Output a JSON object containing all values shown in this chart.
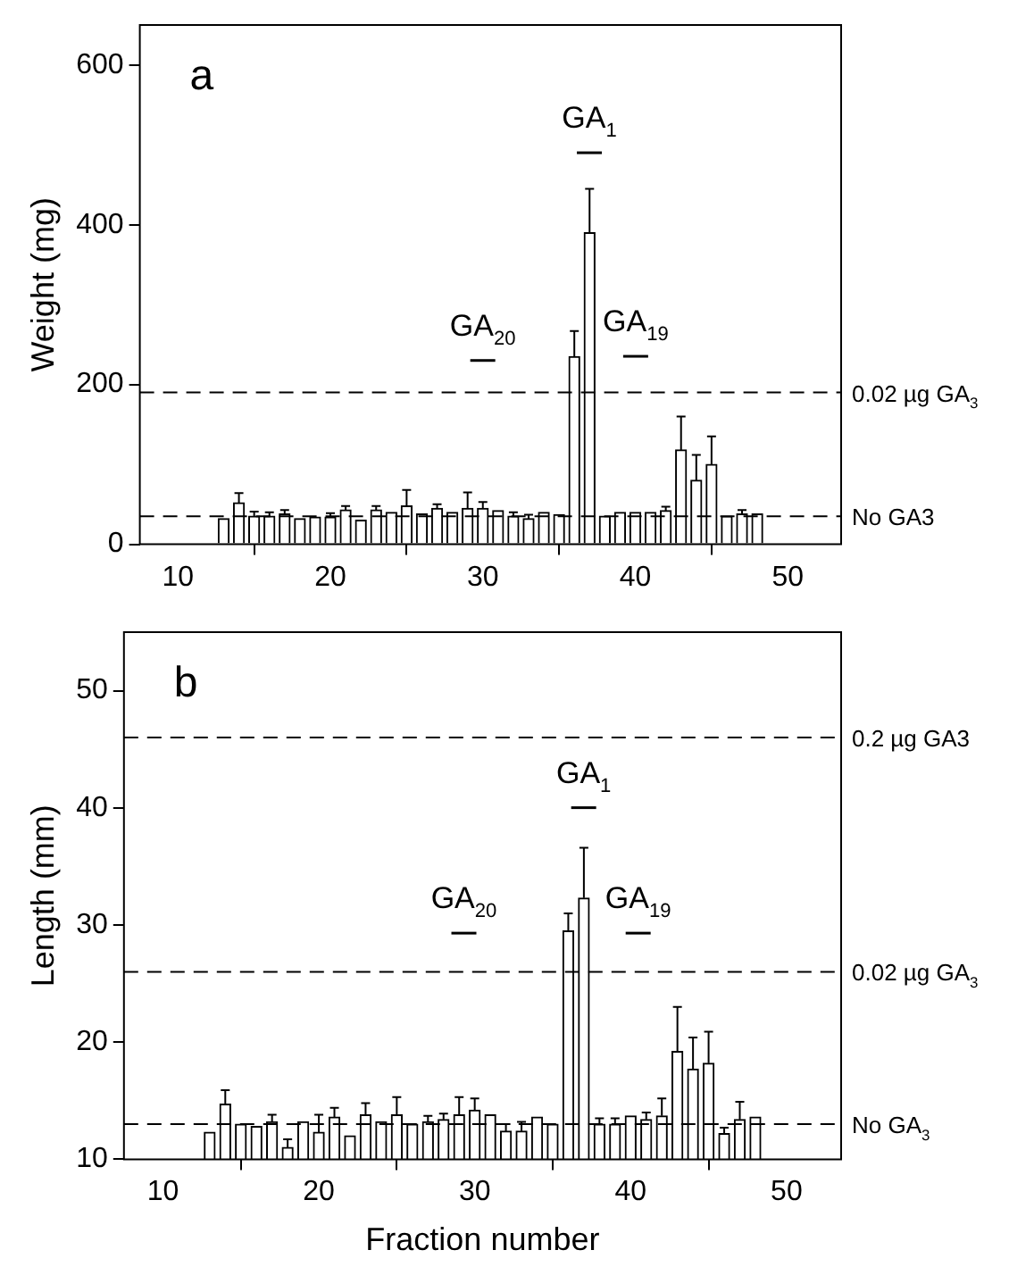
{
  "chart_data": [
    {
      "type": "bar",
      "ylabel": "Weight (mg)",
      "x": [
        13,
        14,
        15,
        16,
        17,
        18,
        19,
        20,
        21,
        22,
        23,
        24,
        25,
        26,
        27,
        28,
        29,
        30,
        31,
        32,
        33,
        34,
        35,
        36,
        37,
        38,
        39,
        40,
        41,
        42,
        43,
        44,
        45,
        46,
        47,
        48
      ],
      "values": [
        32,
        52,
        35,
        35,
        38,
        32,
        34,
        34,
        43,
        30,
        43,
        40,
        48,
        38,
        45,
        40,
        45,
        45,
        42,
        35,
        32,
        40,
        37,
        235,
        390,
        35,
        40,
        40,
        40,
        42,
        118,
        80,
        100,
        35,
        38,
        38
      ],
      "errors": [
        null,
        12,
        6,
        5,
        5,
        null,
        null,
        5,
        5,
        null,
        5,
        null,
        20,
        null,
        5,
        null,
        20,
        8,
        null,
        5,
        5,
        null,
        null,
        32,
        55,
        null,
        null,
        null,
        null,
        5,
        42,
        32,
        35,
        null,
        5,
        null
      ],
      "color": "#ffffff",
      "xlim": [
        7.5,
        53.5
      ],
      "xticks": [
        10,
        20,
        30,
        40,
        50
      ],
      "ylim": [
        0,
        650
      ],
      "yticks": [
        0,
        200,
        400,
        600
      ],
      "grid": false,
      "ref_lines": [
        {
          "axis": "y",
          "value": 190,
          "label": "0.02 µg GA$_{3}$",
          "line_style": "dashed"
        },
        {
          "axis": "y",
          "value": 35,
          "label": "No GA3",
          "line_style": "dashed"
        }
      ],
      "annotations": [
        "a",
        "GA$_{1}$",
        "GA$_{20}$",
        "GA$_{19}$"
      ]
    },
    {
      "type": "bar",
      "xlabel": "Fraction number",
      "ylabel": "Length (mm)",
      "x": [
        13,
        14,
        15,
        16,
        17,
        18,
        19,
        20,
        21,
        22,
        23,
        24,
        25,
        26,
        27,
        28,
        29,
        30,
        31,
        32,
        33,
        34,
        35,
        36,
        37,
        38,
        39,
        40,
        41,
        42,
        43,
        44,
        45,
        46,
        47,
        48
      ],
      "values": [
        12.3,
        14.7,
        13,
        12.8,
        13.2,
        11,
        13.2,
        12.3,
        13.6,
        12,
        13.8,
        13.2,
        13.8,
        13,
        13.2,
        13.4,
        13.8,
        14.2,
        13.8,
        12.4,
        12.4,
        13.6,
        13,
        29.5,
        32.3,
        13,
        13,
        13.7,
        13.4,
        13.7,
        19.2,
        17.7,
        18.2,
        12.2,
        13.4,
        13.6
      ],
      "errors": [
        null,
        1.2,
        null,
        null,
        0.6,
        0.7,
        null,
        1.5,
        0.8,
        null,
        1,
        null,
        1.5,
        null,
        0.5,
        0.5,
        1.5,
        1,
        null,
        0.6,
        0.8,
        null,
        null,
        1.5,
        4.3,
        0.5,
        0.5,
        null,
        0.6,
        1.5,
        3.8,
        2.7,
        2.7,
        0.5,
        1.5,
        null
      ],
      "color": "#ffffff",
      "xlim": [
        7.5,
        53.5
      ],
      "xticks": [
        10,
        20,
        30,
        40,
        50
      ],
      "ylim": [
        10,
        55
      ],
      "yticks": [
        10,
        20,
        30,
        40,
        50
      ],
      "grid": false,
      "ref_lines": [
        {
          "axis": "y",
          "value": 46,
          "label": "0.2 µg GA3",
          "line_style": "dashed"
        },
        {
          "axis": "y",
          "value": 26,
          "label": "0.02 µg GA$_{3}$",
          "line_style": "dashed"
        },
        {
          "axis": "y",
          "value": 13,
          "label": "No GA$_{3}$",
          "line_style": "dashed"
        }
      ],
      "annotations": [
        "b",
        "GA$_{1}$",
        "GA$_{20}$",
        "GA$_{19}$"
      ]
    }
  ]
}
